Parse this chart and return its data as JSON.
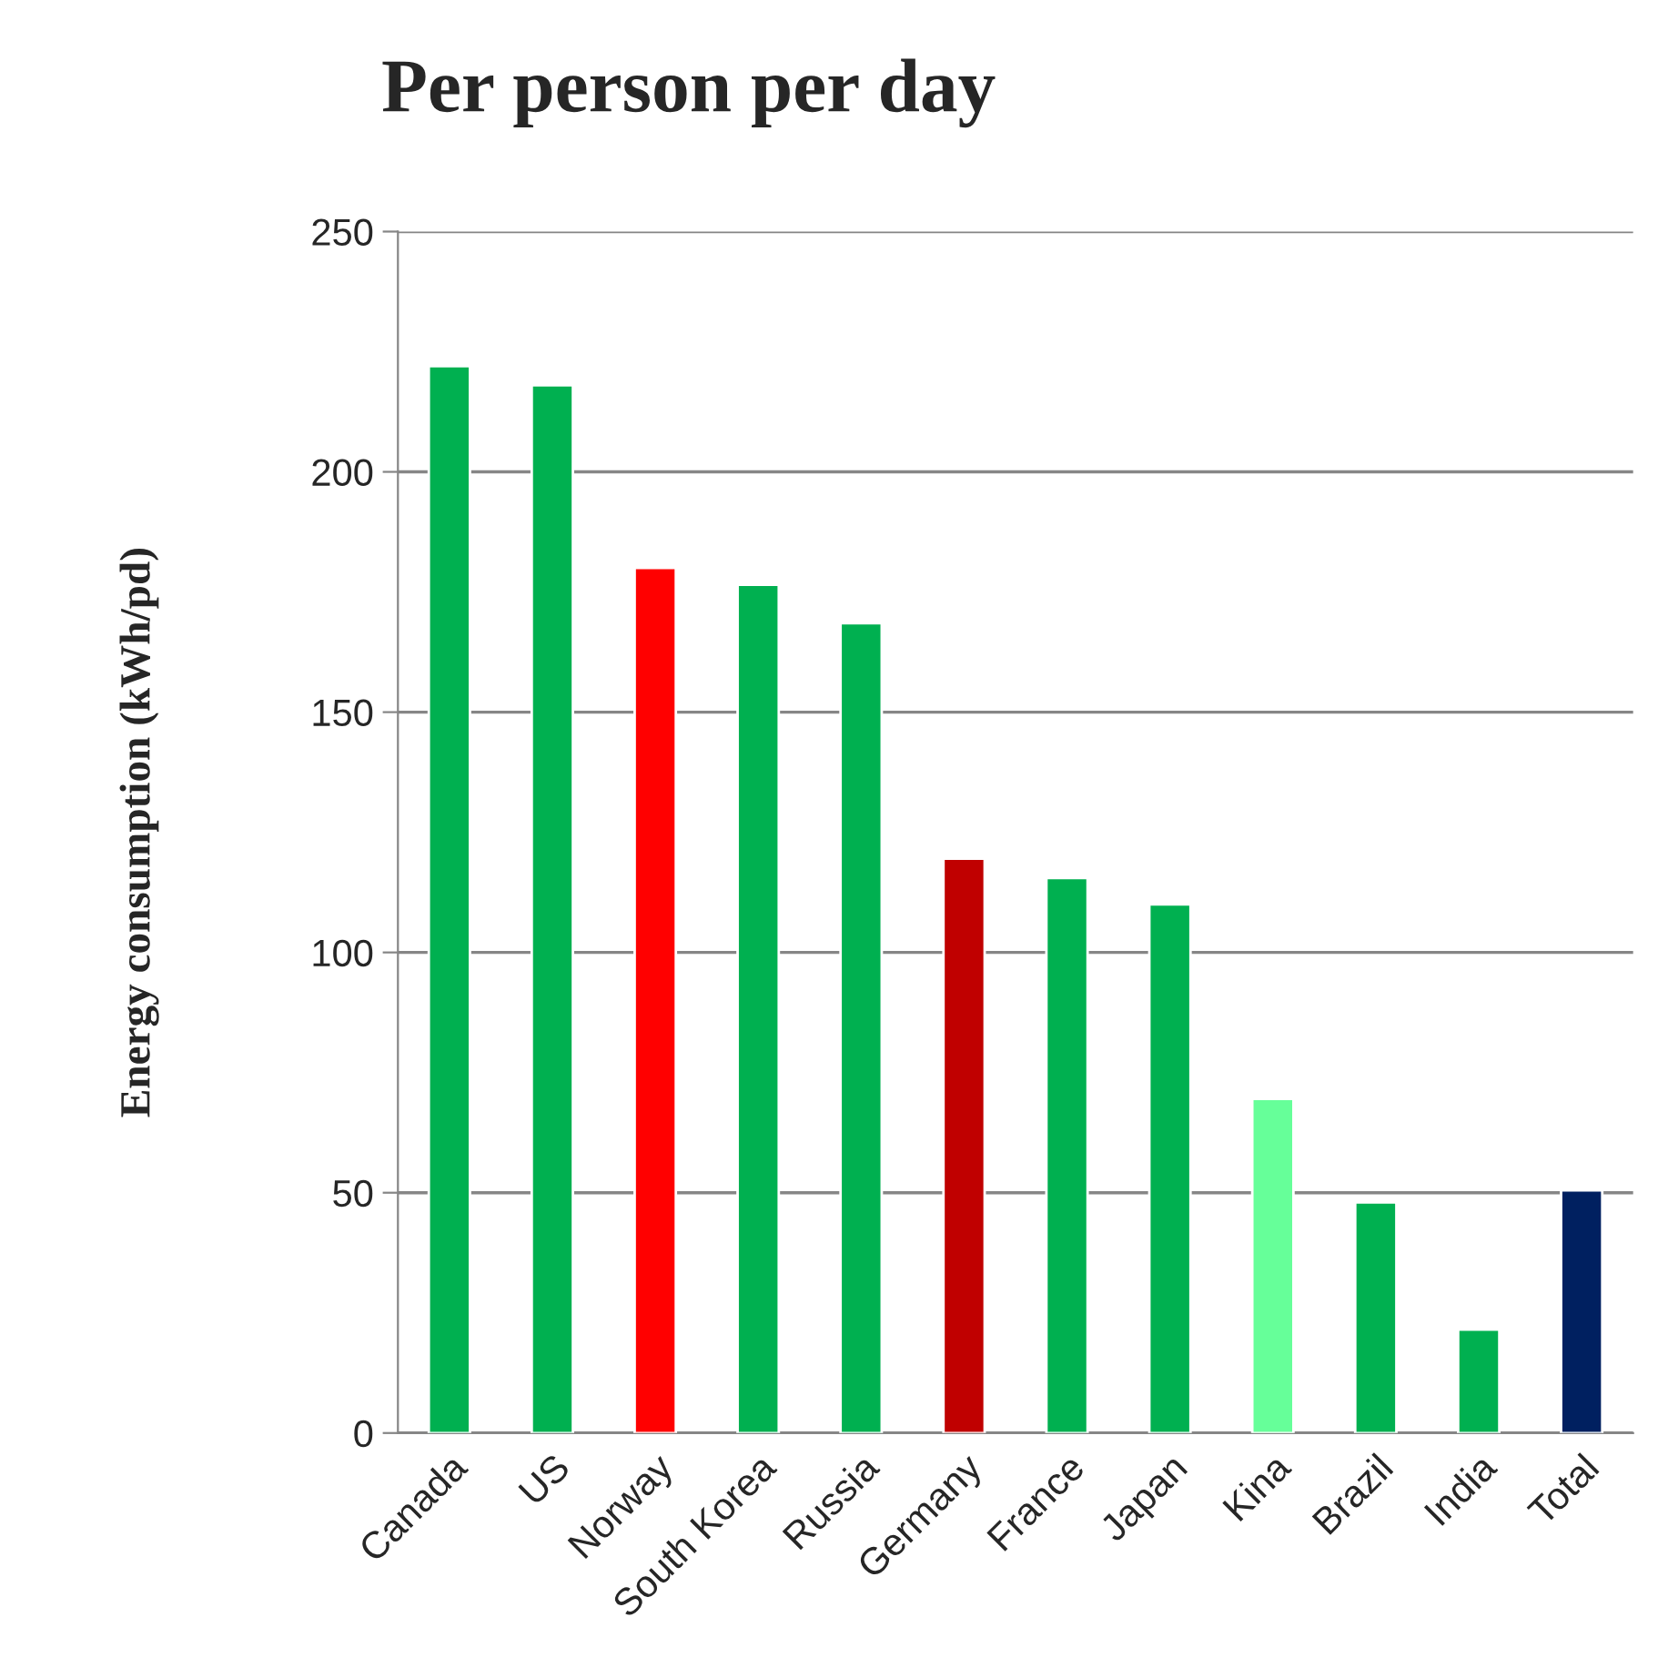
{
  "chart_data": {
    "type": "bar",
    "title": "Per person per day",
    "ylabel": "Energy consumption (kWh/pd)",
    "categories": [
      "Canada",
      "US",
      "Norway",
      "South Korea",
      "Russia",
      "Germany",
      "France",
      "Japan",
      "Kina",
      "Brazil",
      "India",
      "Total"
    ],
    "values": [
      222,
      218,
      180,
      176.5,
      168.5,
      119.5,
      115.5,
      110,
      69.5,
      48,
      21.5,
      50.5
    ],
    "colors": [
      "#00b050",
      "#00b050",
      "#ff0000",
      "#00b050",
      "#00b050",
      "#c00000",
      "#00b050",
      "#00b050",
      "#66ff99",
      "#00b050",
      "#00b050",
      "#002060"
    ],
    "ylim": [
      0,
      250
    ],
    "yticks": [
      0,
      50,
      100,
      150,
      200,
      250
    ],
    "grid": "y",
    "legend": false
  }
}
